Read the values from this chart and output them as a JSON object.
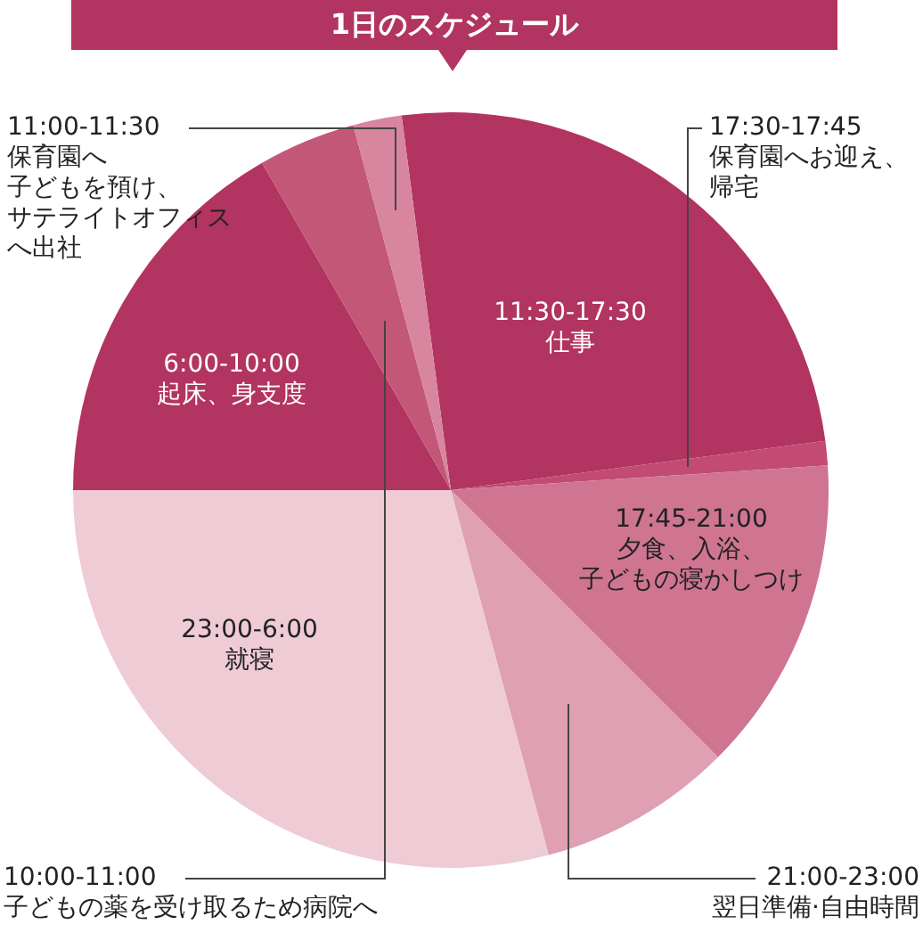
{
  "chart_data": {
    "type": "pie",
    "title": "1日のスケジュール",
    "categories": [
      "11:30-17:30\n仕事",
      "17:30-17:45\n保育園へお迎え、帰宅",
      "17:45-21:00\n夕食、入浴、子どもの寝かしつけ",
      "21:00-23:00\n翌日準備·自由時間",
      "23:00-6:00\n就寝",
      "6:00-10:00\n起床、身支度",
      "10:00-11:00\n子どもの薬を受け取るため病院へ",
      "11:00-11:30\n保育園へ子どもを預け、サテライトオフィスへ出社"
    ],
    "values": [
      25,
      1.04,
      13.54,
      8.33,
      29.17,
      16.67,
      4.17,
      2.08
    ],
    "colors": [
      "#b23460",
      "#c24a73",
      "#cf7591",
      "#dea0b2",
      "#efcbd6",
      "#b23460",
      "#c35778",
      "#d885a0"
    ],
    "legend": false
  }
}
